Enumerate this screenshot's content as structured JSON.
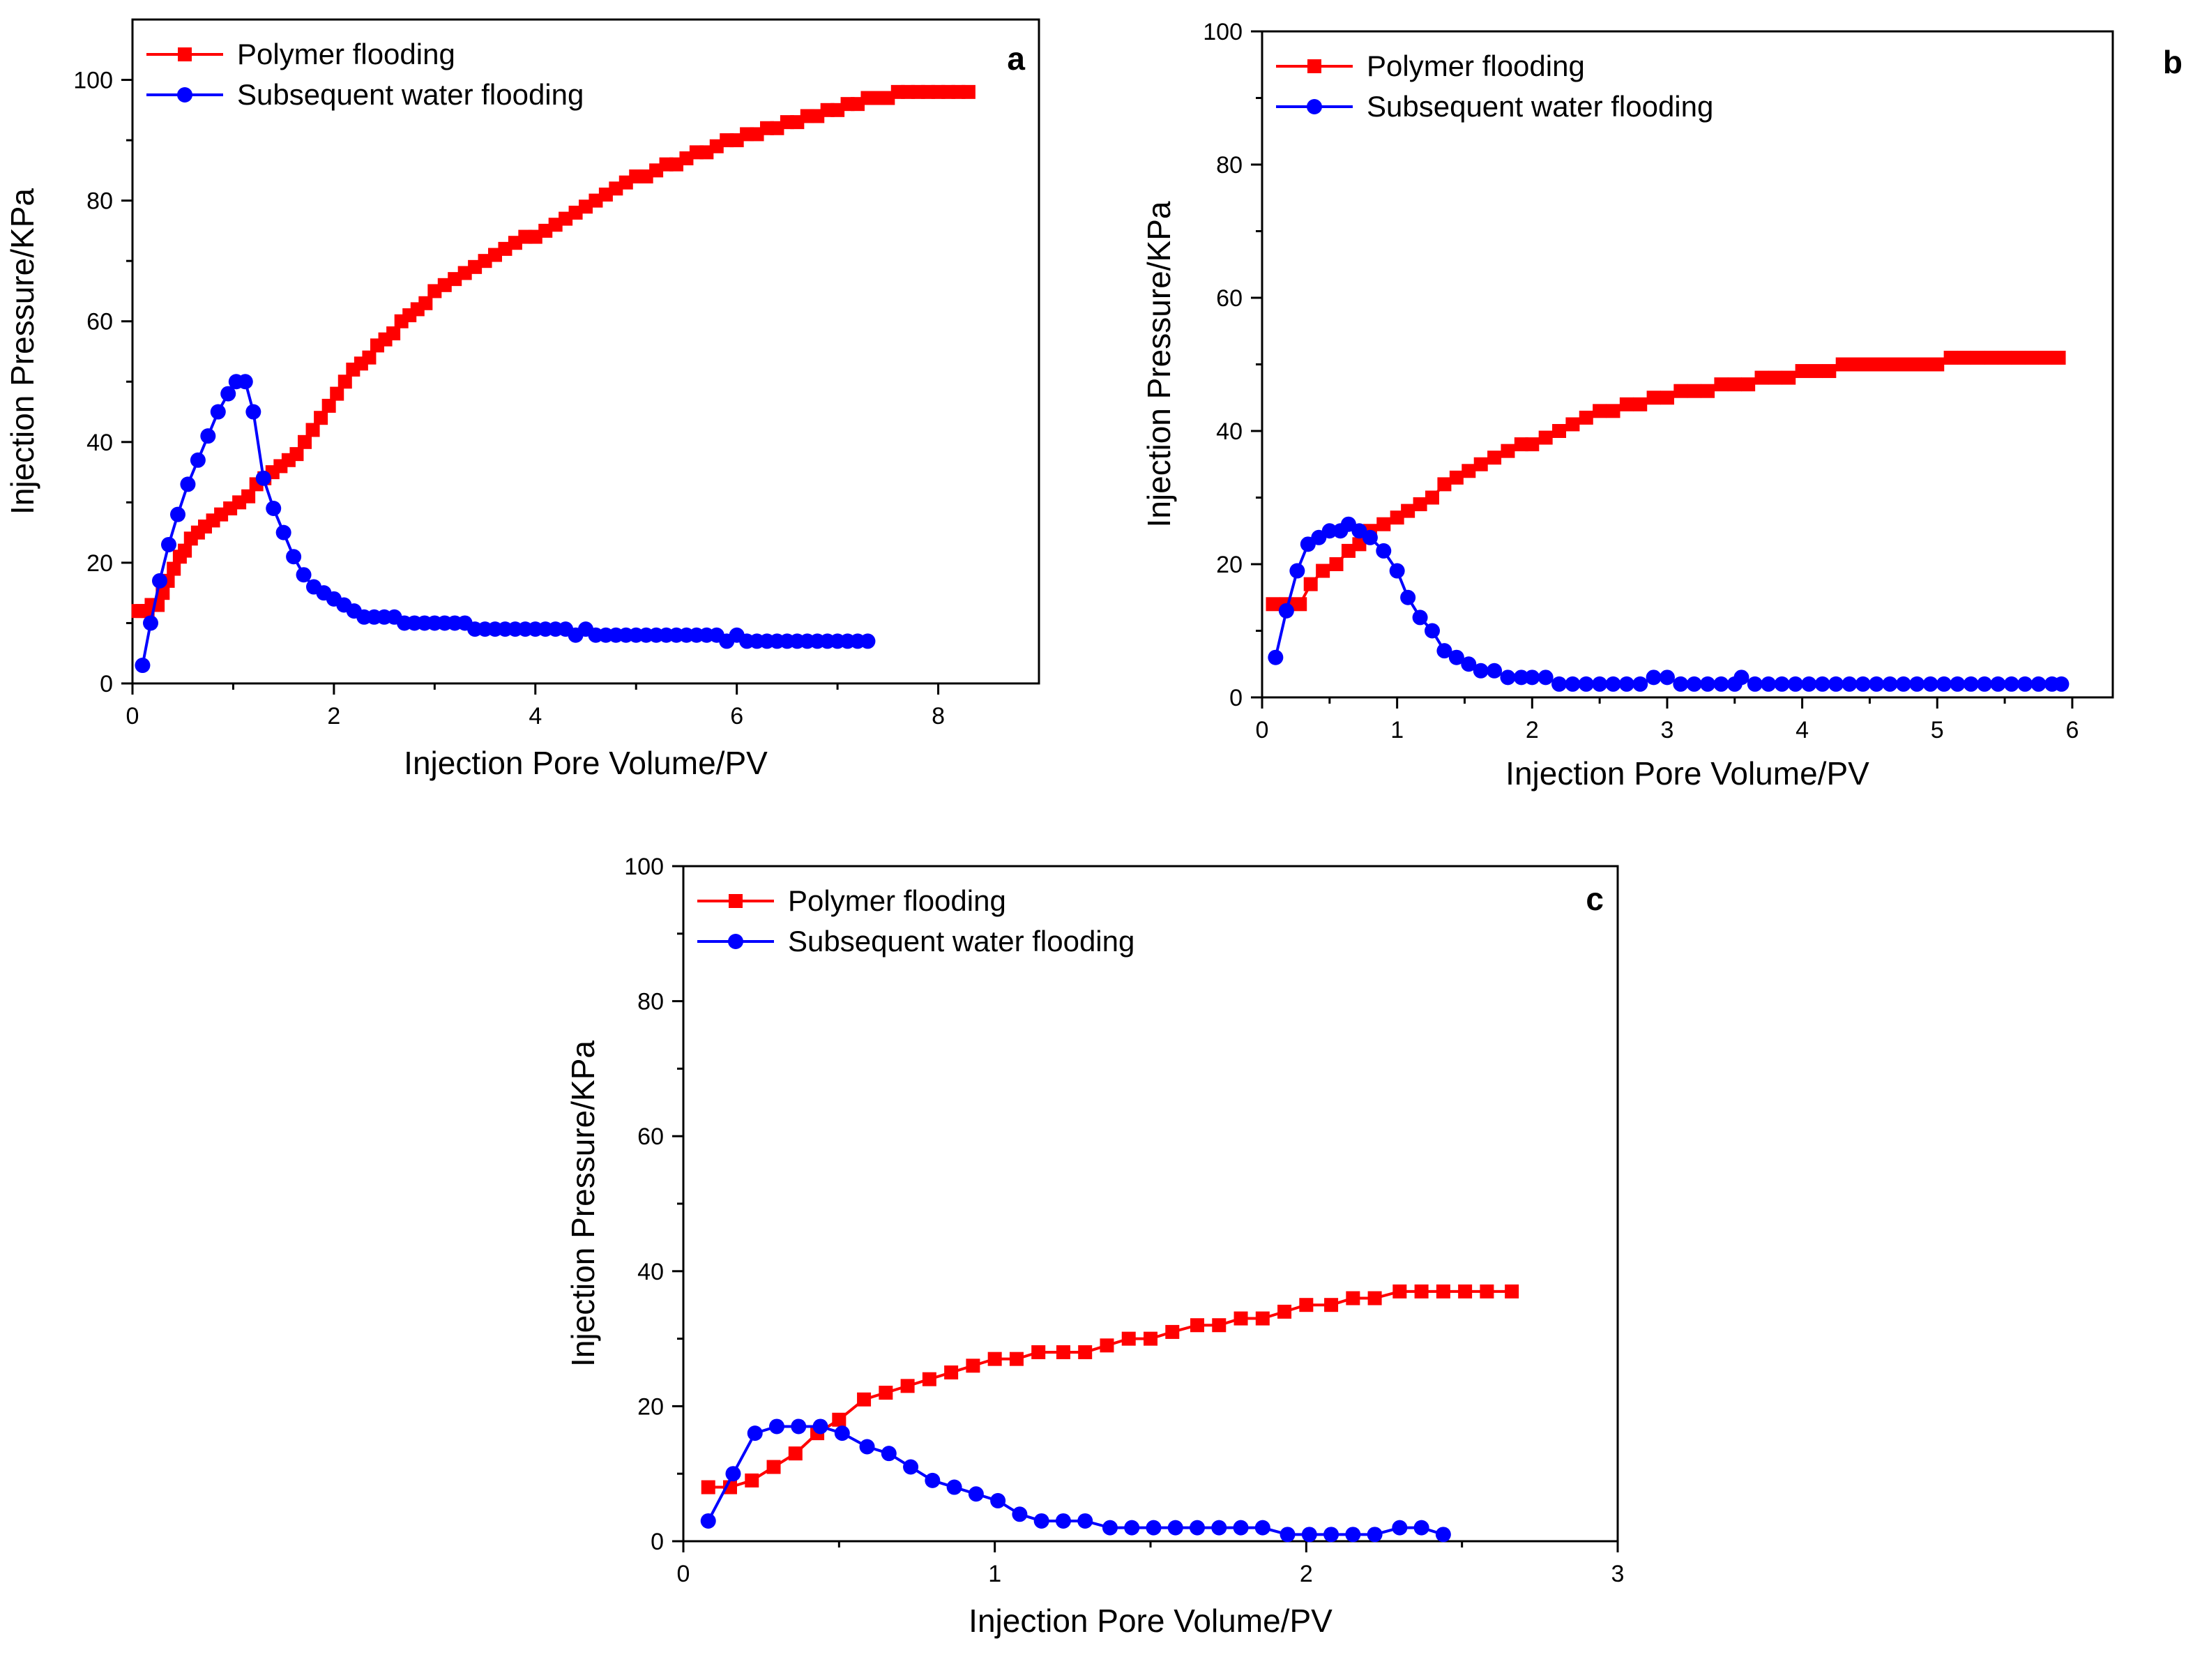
{
  "figure": {
    "description_none": ""
  },
  "colors": {
    "polymer": "#ff0000",
    "water": "#0000ff",
    "axis": "#000000"
  },
  "chart_data": [
    {
      "panel": "a",
      "type": "line",
      "xlabel": "Injection Pore Volume/PV",
      "ylabel": "Injection Pressure/KPa",
      "xlim": [
        0,
        9
      ],
      "ylim": [
        0,
        110
      ],
      "xticks": [
        0,
        2,
        4,
        6,
        8
      ],
      "yticks": [
        0,
        20,
        40,
        60,
        80,
        100
      ],
      "legend_position": "top-left",
      "series": [
        {
          "name": "Polymer flooding",
          "marker": "square",
          "color": "#ff0000",
          "x": [
            0.06,
            0.1,
            0.15,
            0.19,
            0.25,
            0.3,
            0.35,
            0.41,
            0.47,
            0.52,
            0.58,
            0.65,
            0.72,
            0.8,
            0.88,
            0.97,
            1.06,
            1.15,
            1.23,
            1.31,
            1.39,
            1.47,
            1.55,
            1.63,
            1.71,
            1.79,
            1.87,
            1.95,
            2.03,
            2.11,
            2.19,
            2.27,
            2.35,
            2.43,
            2.51,
            2.59,
            2.67,
            2.75,
            2.83,
            2.91,
            3.0,
            3.1,
            3.2,
            3.3,
            3.4,
            3.5,
            3.6,
            3.7,
            3.8,
            3.9,
            4.0,
            4.1,
            4.2,
            4.3,
            4.4,
            4.5,
            4.6,
            4.7,
            4.8,
            4.9,
            5.0,
            5.1,
            5.2,
            5.3,
            5.4,
            5.5,
            5.6,
            5.7,
            5.8,
            5.9,
            6.0,
            6.1,
            6.2,
            6.3,
            6.4,
            6.5,
            6.6,
            6.7,
            6.8,
            6.9,
            7.0,
            7.1,
            7.2,
            7.3,
            7.4,
            7.5,
            7.6,
            7.7,
            7.8,
            7.9,
            8.0,
            8.1,
            8.2,
            8.3
          ],
          "y": [
            12,
            12,
            12,
            13,
            13,
            15,
            17,
            19,
            21,
            22,
            24,
            25,
            26,
            27,
            28,
            29,
            30,
            31,
            33,
            34,
            35,
            36,
            37,
            38,
            40,
            42,
            44,
            46,
            48,
            50,
            52,
            53,
            54,
            56,
            57,
            58,
            60,
            61,
            62,
            63,
            65,
            66,
            67,
            68,
            69,
            70,
            71,
            72,
            73,
            74,
            74,
            75,
            76,
            77,
            78,
            79,
            80,
            81,
            82,
            83,
            84,
            84,
            85,
            86,
            86,
            87,
            88,
            88,
            89,
            90,
            90,
            91,
            91,
            92,
            92,
            93,
            93,
            94,
            94,
            95,
            95,
            96,
            96,
            97,
            97,
            97,
            98,
            98,
            98,
            98,
            98,
            98,
            98,
            98
          ]
        },
        {
          "name": "Subsequent water flooding",
          "marker": "circle",
          "color": "#0000ff",
          "x": [
            0.1,
            0.18,
            0.27,
            0.36,
            0.45,
            0.55,
            0.65,
            0.75,
            0.85,
            0.95,
            1.03,
            1.12,
            1.2,
            1.3,
            1.4,
            1.5,
            1.6,
            1.7,
            1.8,
            1.9,
            2.0,
            2.1,
            2.2,
            2.3,
            2.4,
            2.5,
            2.6,
            2.7,
            2.8,
            2.9,
            3.0,
            3.1,
            3.2,
            3.3,
            3.4,
            3.5,
            3.6,
            3.7,
            3.8,
            3.9,
            4.0,
            4.1,
            4.2,
            4.3,
            4.4,
            4.5,
            4.6,
            4.7,
            4.8,
            4.9,
            5.0,
            5.1,
            5.2,
            5.3,
            5.4,
            5.5,
            5.6,
            5.7,
            5.8,
            5.9,
            6.0,
            6.1,
            6.2,
            6.3,
            6.4,
            6.5,
            6.6,
            6.7,
            6.8,
            6.9,
            7.0,
            7.1,
            7.2,
            7.3
          ],
          "y": [
            3,
            10,
            17,
            23,
            28,
            33,
            37,
            41,
            45,
            48,
            50,
            50,
            45,
            34,
            29,
            25,
            21,
            18,
            16,
            15,
            14,
            13,
            12,
            11,
            11,
            11,
            11,
            10,
            10,
            10,
            10,
            10,
            10,
            10,
            9,
            9,
            9,
            9,
            9,
            9,
            9,
            9,
            9,
            9,
            8,
            9,
            8,
            8,
            8,
            8,
            8,
            8,
            8,
            8,
            8,
            8,
            8,
            8,
            8,
            7,
            8,
            7,
            7,
            7,
            7,
            7,
            7,
            7,
            7,
            7,
            7,
            7,
            7,
            7
          ]
        }
      ],
      "title": "a"
    },
    {
      "panel": "b",
      "type": "line",
      "xlabel": "Injection Pore Volume/PV",
      "ylabel": "Injection Pressure/KPa",
      "xlim": [
        0,
        6.3
      ],
      "ylim": [
        0,
        100
      ],
      "xticks": [
        0,
        1,
        2,
        3,
        4,
        5,
        6
      ],
      "yticks": [
        0,
        20,
        40,
        60,
        80,
        100
      ],
      "legend_position": "top-left",
      "series": [
        {
          "name": "Polymer flooding",
          "marker": "square",
          "color": "#ff0000",
          "x": [
            0.08,
            0.18,
            0.28,
            0.36,
            0.45,
            0.55,
            0.64,
            0.72,
            0.8,
            0.9,
            1.0,
            1.08,
            1.17,
            1.26,
            1.35,
            1.44,
            1.53,
            1.62,
            1.72,
            1.82,
            1.92,
            2.0,
            2.1,
            2.2,
            2.3,
            2.4,
            2.5,
            2.6,
            2.7,
            2.8,
            2.9,
            3.0,
            3.1,
            3.2,
            3.3,
            3.4,
            3.5,
            3.6,
            3.7,
            3.8,
            3.9,
            4.0,
            4.1,
            4.2,
            4.3,
            4.4,
            4.5,
            4.6,
            4.7,
            4.8,
            4.9,
            5.0,
            5.1,
            5.2,
            5.3,
            5.4,
            5.5,
            5.6,
            5.7,
            5.8,
            5.9
          ],
          "y": [
            14,
            14,
            14,
            17,
            19,
            20,
            22,
            23,
            25,
            26,
            27,
            28,
            29,
            30,
            32,
            33,
            34,
            35,
            36,
            37,
            38,
            38,
            39,
            40,
            41,
            42,
            43,
            43,
            44,
            44,
            45,
            45,
            46,
            46,
            46,
            47,
            47,
            47,
            48,
            48,
            48,
            49,
            49,
            49,
            50,
            50,
            50,
            50,
            50,
            50,
            50,
            50,
            51,
            51,
            51,
            51,
            51,
            51,
            51,
            51,
            51
          ]
        },
        {
          "name": "Subsequent water flooding",
          "marker": "circle",
          "color": "#0000ff",
          "x": [
            0.1,
            0.18,
            0.26,
            0.34,
            0.42,
            0.5,
            0.58,
            0.64,
            0.72,
            0.8,
            0.9,
            1.0,
            1.08,
            1.17,
            1.26,
            1.35,
            1.44,
            1.53,
            1.62,
            1.72,
            1.82,
            1.92,
            2.0,
            2.1,
            2.2,
            2.3,
            2.4,
            2.5,
            2.6,
            2.7,
            2.8,
            2.9,
            3.0,
            3.1,
            3.2,
            3.3,
            3.4,
            3.5,
            3.55,
            3.65,
            3.75,
            3.85,
            3.95,
            4.05,
            4.15,
            4.25,
            4.35,
            4.45,
            4.55,
            4.65,
            4.75,
            4.85,
            4.95,
            5.05,
            5.15,
            5.25,
            5.35,
            5.45,
            5.55,
            5.65,
            5.75,
            5.85,
            5.92
          ],
          "y": [
            6,
            13,
            19,
            23,
            24,
            25,
            25,
            26,
            25,
            24,
            22,
            19,
            15,
            12,
            10,
            7,
            6,
            5,
            4,
            4,
            3,
            3,
            3,
            3,
            2,
            2,
            2,
            2,
            2,
            2,
            2,
            3,
            3,
            2,
            2,
            2,
            2,
            2,
            3,
            2,
            2,
            2,
            2,
            2,
            2,
            2,
            2,
            2,
            2,
            2,
            2,
            2,
            2,
            2,
            2,
            2,
            2,
            2,
            2,
            2,
            2,
            2,
            2
          ]
        }
      ],
      "title": "b"
    },
    {
      "panel": "c",
      "type": "line",
      "xlabel": "Injection Pore Volume/PV",
      "ylabel": "Injection Pressure/KPa",
      "xlim": [
        0,
        3
      ],
      "ylim": [
        0,
        100
      ],
      "xticks": [
        0,
        1,
        2,
        3
      ],
      "yticks": [
        0,
        20,
        40,
        60,
        80,
        100
      ],
      "legend_position": "top-left",
      "series": [
        {
          "name": "Polymer flooding",
          "marker": "square",
          "color": "#ff0000",
          "x": [
            0.08,
            0.15,
            0.22,
            0.29,
            0.36,
            0.43,
            0.5,
            0.58,
            0.65,
            0.72,
            0.79,
            0.86,
            0.93,
            1.0,
            1.07,
            1.14,
            1.22,
            1.29,
            1.36,
            1.43,
            1.5,
            1.57,
            1.65,
            1.72,
            1.79,
            1.86,
            1.93,
            2.0,
            2.08,
            2.15,
            2.22,
            2.3,
            2.37,
            2.44,
            2.51,
            2.58,
            2.66
          ],
          "y": [
            8,
            8,
            9,
            11,
            13,
            16,
            18,
            21,
            22,
            23,
            24,
            25,
            26,
            27,
            27,
            28,
            28,
            28,
            29,
            30,
            30,
            31,
            32,
            32,
            33,
            33,
            34,
            35,
            35,
            36,
            36,
            37,
            37,
            37,
            37,
            37,
            37
          ]
        },
        {
          "name": "Subsequent water flooding",
          "marker": "circle",
          "color": "#0000ff",
          "x": [
            0.08,
            0.16,
            0.23,
            0.3,
            0.37,
            0.44,
            0.51,
            0.59,
            0.66,
            0.73,
            0.8,
            0.87,
            0.94,
            1.01,
            1.08,
            1.15,
            1.22,
            1.29,
            1.37,
            1.44,
            1.51,
            1.58,
            1.65,
            1.72,
            1.79,
            1.86,
            1.94,
            2.01,
            2.08,
            2.15,
            2.22,
            2.3,
            2.37,
            2.44
          ],
          "y": [
            3,
            10,
            16,
            17,
            17,
            17,
            16,
            14,
            13,
            11,
            9,
            8,
            7,
            6,
            4,
            3,
            3,
            3,
            2,
            2,
            2,
            2,
            2,
            2,
            2,
            2,
            1,
            1,
            1,
            1,
            1,
            2,
            2,
            1
          ]
        }
      ],
      "title": "c"
    }
  ]
}
